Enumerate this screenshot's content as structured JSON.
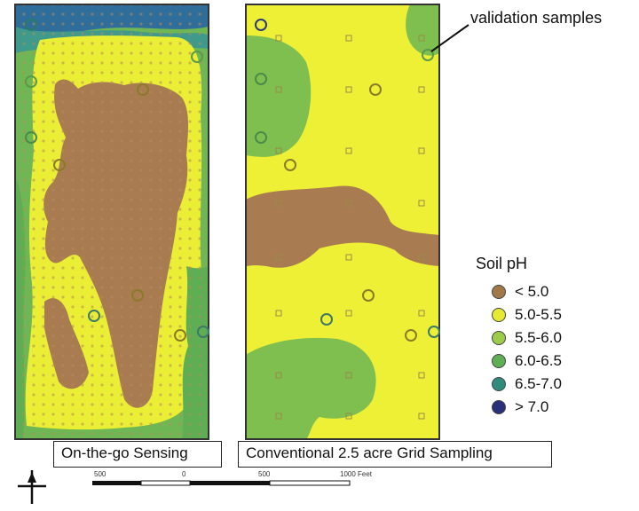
{
  "panels": {
    "left_label": "On-the-go Sensing",
    "right_label": "Conventional 2.5 acre Grid Sampling"
  },
  "callout": "validation samples",
  "legend": {
    "title": "Soil pH",
    "items": [
      {
        "label": "< 5.0",
        "color": "#a0784a"
      },
      {
        "label": "5.0-5.5",
        "color": "#e6ea32"
      },
      {
        "label": "5.5-6.0",
        "color": "#9ccc4a"
      },
      {
        "label": "6.0-6.5",
        "color": "#5fae54"
      },
      {
        "label": "6.5-7.0",
        "color": "#2f8c7c"
      },
      {
        "label": "> 7.0",
        "color": "#2a2f7a"
      }
    ]
  },
  "scale": {
    "ticks": [
      "500",
      "0",
      "500",
      "1000 Feet"
    ]
  },
  "colors": {
    "yellow": "#eef036",
    "brown": "#a87c50",
    "green": "#7fbf4f",
    "teal": "#3a9a7a",
    "border": "#333333"
  }
}
